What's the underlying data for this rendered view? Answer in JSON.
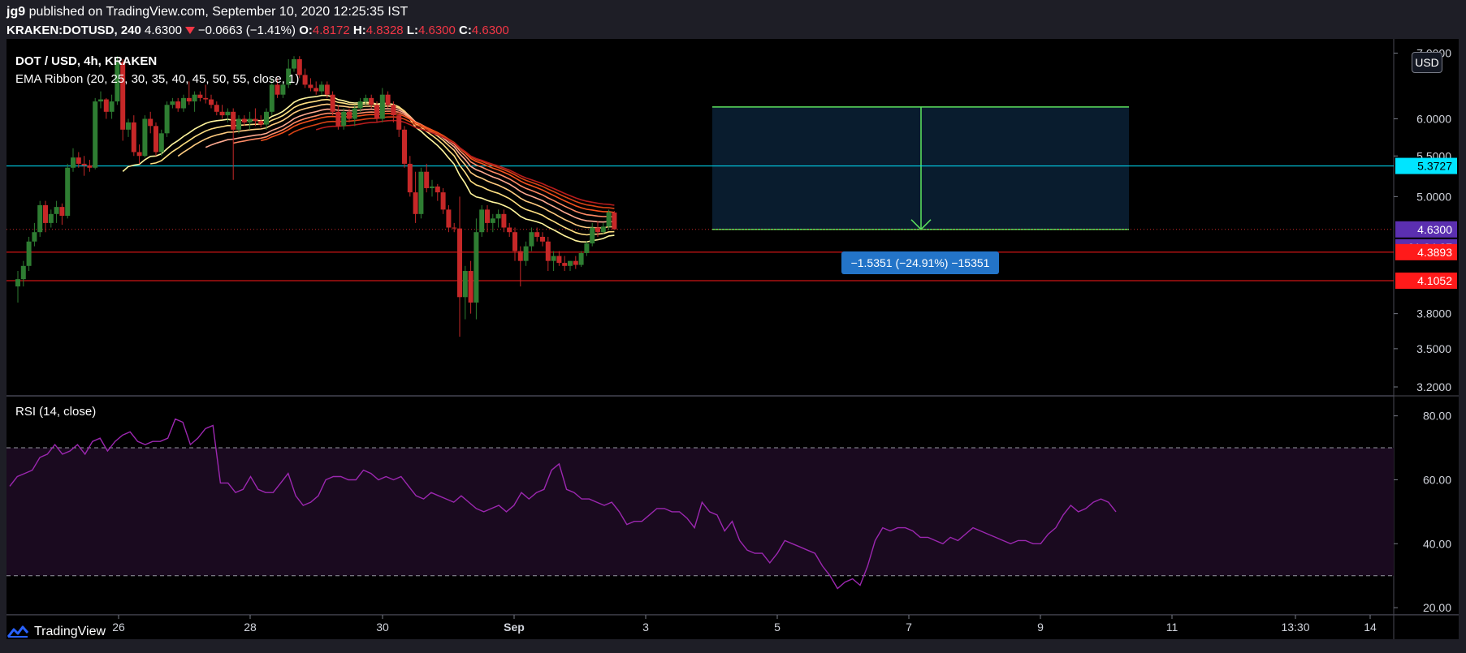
{
  "header": {
    "publisher": "jg9",
    "published_text": "published on TradingView.com, September 10, 2020 12:25:35 IST",
    "symbol": "KRAKEN:DOTUSD, 240",
    "last": "4.6300",
    "change": "−0.0663 (−1.41%)",
    "o_label": "O:",
    "o_val": "4.8172",
    "h_label": "H:",
    "h_val": "4.8328",
    "l_label": "L:",
    "l_val": "4.6300",
    "c_label": "C:",
    "c_val": "4.6300"
  },
  "legend": {
    "title": "DOT / USD, 4h, KRAKEN",
    "indicator": "EMA Ribbon (20, 25, 30, 35, 40, 45, 50, 55, close, 1)",
    "rsi": "RSI (14, close)"
  },
  "currency_button": "USD",
  "footer": {
    "brand": "TradingView"
  },
  "colors": {
    "background": "#000000",
    "up": "#2e7d32",
    "down": "#c62828",
    "rsi_line": "#9c27b0",
    "rsi_band": "#1a0a1f",
    "cyan": "#00e5ff",
    "red_level": "#ff1a1a",
    "green_box": "#5ee35e",
    "box_fill": "#0a1f33",
    "label_blue": "#2374c8",
    "label_purple": "#5b2fb0"
  },
  "chart_data": [
    {
      "type": "candlestick",
      "title": "DOT / USD, 4h, KRAKEN",
      "x_tick_labels": [
        "26",
        "28",
        "30",
        "Sep",
        "3",
        "5",
        "7",
        "9",
        "11",
        "13:30",
        "14"
      ],
      "y_tick_labels": [
        "7.0000",
        "6.0000",
        "5.5000",
        "5.0000",
        "3.8000",
        "3.5000",
        "3.2000"
      ],
      "ylim": [
        3.2,
        7.1
      ],
      "candles": [
        {
          "o": 4.05,
          "h": 4.2,
          "l": 3.9,
          "c": 4.12
        },
        {
          "o": 4.12,
          "h": 4.3,
          "l": 4.05,
          "c": 4.25
        },
        {
          "o": 4.25,
          "h": 4.55,
          "l": 4.2,
          "c": 4.5
        },
        {
          "o": 4.5,
          "h": 4.7,
          "l": 4.45,
          "c": 4.6
        },
        {
          "o": 4.6,
          "h": 4.95,
          "l": 4.55,
          "c": 4.9
        },
        {
          "o": 4.9,
          "h": 4.95,
          "l": 4.6,
          "c": 4.7
        },
        {
          "o": 4.7,
          "h": 4.85,
          "l": 4.65,
          "c": 4.8
        },
        {
          "o": 4.8,
          "h": 4.95,
          "l": 4.7,
          "c": 4.88
        },
        {
          "o": 4.88,
          "h": 4.92,
          "l": 4.68,
          "c": 4.78
        },
        {
          "o": 4.78,
          "h": 5.4,
          "l": 4.75,
          "c": 5.35
        },
        {
          "o": 5.35,
          "h": 5.6,
          "l": 5.3,
          "c": 5.48
        },
        {
          "o": 5.48,
          "h": 5.55,
          "l": 5.35,
          "c": 5.4
        },
        {
          "o": 5.4,
          "h": 5.5,
          "l": 5.25,
          "c": 5.38
        },
        {
          "o": 5.38,
          "h": 5.45,
          "l": 5.3,
          "c": 5.35
        },
        {
          "o": 5.35,
          "h": 6.3,
          "l": 5.33,
          "c": 6.25
        },
        {
          "o": 6.25,
          "h": 6.4,
          "l": 6.15,
          "c": 6.28
        },
        {
          "o": 6.28,
          "h": 6.3,
          "l": 6.0,
          "c": 6.1
        },
        {
          "o": 6.1,
          "h": 6.35,
          "l": 6.0,
          "c": 6.25
        },
        {
          "o": 6.25,
          "h": 6.95,
          "l": 6.2,
          "c": 6.85
        },
        {
          "o": 6.85,
          "h": 6.9,
          "l": 5.7,
          "c": 5.85
        },
        {
          "o": 5.85,
          "h": 6.0,
          "l": 5.75,
          "c": 5.95
        },
        {
          "o": 5.95,
          "h": 6.05,
          "l": 5.5,
          "c": 5.55
        },
        {
          "o": 5.55,
          "h": 5.65,
          "l": 5.4,
          "c": 5.5
        },
        {
          "o": 5.5,
          "h": 6.05,
          "l": 5.48,
          "c": 6.0
        },
        {
          "o": 6.0,
          "h": 6.1,
          "l": 5.8,
          "c": 5.9
        },
        {
          "o": 5.9,
          "h": 5.95,
          "l": 5.5,
          "c": 5.55
        },
        {
          "o": 5.55,
          "h": 5.85,
          "l": 5.5,
          "c": 5.8
        },
        {
          "o": 5.8,
          "h": 6.25,
          "l": 5.75,
          "c": 6.2
        },
        {
          "o": 6.2,
          "h": 6.3,
          "l": 6.15,
          "c": 6.25
        },
        {
          "o": 6.25,
          "h": 6.3,
          "l": 6.1,
          "c": 6.15
        },
        {
          "o": 6.15,
          "h": 6.35,
          "l": 6.1,
          "c": 6.3
        },
        {
          "o": 6.3,
          "h": 6.55,
          "l": 6.2,
          "c": 6.25
        },
        {
          "o": 6.25,
          "h": 6.4,
          "l": 6.1,
          "c": 6.35
        },
        {
          "o": 6.35,
          "h": 6.4,
          "l": 6.25,
          "c": 6.3
        },
        {
          "o": 6.3,
          "h": 6.5,
          "l": 6.22,
          "c": 6.28
        },
        {
          "o": 6.28,
          "h": 6.35,
          "l": 6.15,
          "c": 6.2
        },
        {
          "o": 6.2,
          "h": 6.25,
          "l": 6.05,
          "c": 6.1
        },
        {
          "o": 6.1,
          "h": 6.2,
          "l": 6.0,
          "c": 6.05
        },
        {
          "o": 6.05,
          "h": 6.15,
          "l": 5.95,
          "c": 6.1
        },
        {
          "o": 6.1,
          "h": 6.15,
          "l": 5.2,
          "c": 5.85
        },
        {
          "o": 5.85,
          "h": 6.05,
          "l": 5.8,
          "c": 6.0
        },
        {
          "o": 6.0,
          "h": 6.05,
          "l": 5.9,
          "c": 5.95
        },
        {
          "o": 5.95,
          "h": 6.1,
          "l": 5.85,
          "c": 6.0
        },
        {
          "o": 6.0,
          "h": 6.15,
          "l": 5.9,
          "c": 5.97
        },
        {
          "o": 5.97,
          "h": 6.05,
          "l": 5.88,
          "c": 5.92
        },
        {
          "o": 5.92,
          "h": 6.15,
          "l": 5.85,
          "c": 6.1
        },
        {
          "o": 6.1,
          "h": 6.6,
          "l": 6.05,
          "c": 6.5
        },
        {
          "o": 6.5,
          "h": 6.6,
          "l": 6.3,
          "c": 6.35
        },
        {
          "o": 6.35,
          "h": 6.55,
          "l": 6.3,
          "c": 6.5
        },
        {
          "o": 6.5,
          "h": 6.9,
          "l": 6.45,
          "c": 6.75
        },
        {
          "o": 6.75,
          "h": 6.95,
          "l": 6.7,
          "c": 6.9
        },
        {
          "o": 6.9,
          "h": 6.95,
          "l": 6.6,
          "c": 6.65
        },
        {
          "o": 6.65,
          "h": 6.75,
          "l": 6.45,
          "c": 6.5
        },
        {
          "o": 6.5,
          "h": 6.6,
          "l": 6.4,
          "c": 6.45
        },
        {
          "o": 6.45,
          "h": 6.55,
          "l": 6.35,
          "c": 6.4
        },
        {
          "o": 6.4,
          "h": 6.55,
          "l": 6.35,
          "c": 6.5
        },
        {
          "o": 6.5,
          "h": 6.55,
          "l": 6.3,
          "c": 6.35
        },
        {
          "o": 6.35,
          "h": 6.4,
          "l": 6.05,
          "c": 6.1
        },
        {
          "o": 6.1,
          "h": 6.2,
          "l": 5.85,
          "c": 5.9
        },
        {
          "o": 5.9,
          "h": 6.15,
          "l": 5.85,
          "c": 6.1
        },
        {
          "o": 6.1,
          "h": 6.15,
          "l": 5.95,
          "c": 6.0
        },
        {
          "o": 6.0,
          "h": 6.2,
          "l": 5.9,
          "c": 6.15
        },
        {
          "o": 6.15,
          "h": 6.3,
          "l": 6.1,
          "c": 6.25
        },
        {
          "o": 6.25,
          "h": 6.35,
          "l": 6.2,
          "c": 6.3
        },
        {
          "o": 6.3,
          "h": 6.35,
          "l": 6.15,
          "c": 6.2
        },
        {
          "o": 6.2,
          "h": 6.25,
          "l": 5.95,
          "c": 6.0
        },
        {
          "o": 6.0,
          "h": 6.45,
          "l": 5.95,
          "c": 6.35
        },
        {
          "o": 6.35,
          "h": 6.4,
          "l": 6.15,
          "c": 6.2
        },
        {
          "o": 6.2,
          "h": 6.25,
          "l": 5.95,
          "c": 6.05
        },
        {
          "o": 6.05,
          "h": 6.1,
          "l": 5.75,
          "c": 5.85
        },
        {
          "o": 5.85,
          "h": 5.9,
          "l": 5.35,
          "c": 5.4
        },
        {
          "o": 5.4,
          "h": 5.5,
          "l": 5.0,
          "c": 5.05
        },
        {
          "o": 5.05,
          "h": 5.3,
          "l": 4.7,
          "c": 4.8
        },
        {
          "o": 4.8,
          "h": 5.35,
          "l": 4.75,
          "c": 5.3
        },
        {
          "o": 5.3,
          "h": 5.4,
          "l": 5.05,
          "c": 5.1
        },
        {
          "o": 5.1,
          "h": 5.2,
          "l": 5.0,
          "c": 5.12
        },
        {
          "o": 5.12,
          "h": 5.15,
          "l": 4.95,
          "c": 5.05
        },
        {
          "o": 5.05,
          "h": 5.1,
          "l": 4.8,
          "c": 4.85
        },
        {
          "o": 4.85,
          "h": 4.9,
          "l": 4.6,
          "c": 4.65
        },
        {
          "o": 4.65,
          "h": 4.7,
          "l": 4.6,
          "c": 4.64
        },
        {
          "o": 4.64,
          "h": 5.0,
          "l": 3.6,
          "c": 3.95
        },
        {
          "o": 3.95,
          "h": 4.25,
          "l": 3.75,
          "c": 4.2
        },
        {
          "o": 4.2,
          "h": 4.3,
          "l": 3.8,
          "c": 3.9
        },
        {
          "o": 3.9,
          "h": 4.75,
          "l": 3.75,
          "c": 4.6
        },
        {
          "o": 4.6,
          "h": 4.9,
          "l": 4.55,
          "c": 4.85
        },
        {
          "o": 4.85,
          "h": 4.9,
          "l": 4.6,
          "c": 4.7
        },
        {
          "o": 4.7,
          "h": 4.8,
          "l": 4.6,
          "c": 4.75
        },
        {
          "o": 4.75,
          "h": 4.85,
          "l": 4.65,
          "c": 4.8
        },
        {
          "o": 4.8,
          "h": 4.85,
          "l": 4.6,
          "c": 4.65
        },
        {
          "o": 4.65,
          "h": 4.7,
          "l": 4.55,
          "c": 4.6
        },
        {
          "o": 4.6,
          "h": 4.65,
          "l": 4.3,
          "c": 4.4
        },
        {
          "o": 4.4,
          "h": 4.45,
          "l": 4.05,
          "c": 4.3
        },
        {
          "o": 4.3,
          "h": 4.5,
          "l": 4.25,
          "c": 4.45
        },
        {
          "o": 4.45,
          "h": 4.65,
          "l": 4.4,
          "c": 4.6
        },
        {
          "o": 4.6,
          "h": 4.65,
          "l": 4.5,
          "c": 4.55
        },
        {
          "o": 4.55,
          "h": 4.6,
          "l": 4.45,
          "c": 4.5
        },
        {
          "o": 4.5,
          "h": 4.55,
          "l": 4.2,
          "c": 4.3
        },
        {
          "o": 4.3,
          "h": 4.4,
          "l": 4.2,
          "c": 4.35
        },
        {
          "o": 4.35,
          "h": 4.4,
          "l": 4.25,
          "c": 4.28
        },
        {
          "o": 4.28,
          "h": 4.35,
          "l": 4.2,
          "c": 4.25
        },
        {
          "o": 4.25,
          "h": 4.3,
          "l": 4.2,
          "c": 4.3
        },
        {
          "o": 4.3,
          "h": 4.35,
          "l": 4.22,
          "c": 4.26
        },
        {
          "o": 4.26,
          "h": 4.4,
          "l": 4.24,
          "c": 4.38
        },
        {
          "o": 4.38,
          "h": 4.5,
          "l": 4.35,
          "c": 4.48
        },
        {
          "o": 4.48,
          "h": 4.7,
          "l": 4.45,
          "c": 4.65
        },
        {
          "o": 4.65,
          "h": 4.72,
          "l": 4.55,
          "c": 4.6
        },
        {
          "o": 4.6,
          "h": 4.7,
          "l": 4.58,
          "c": 4.66
        },
        {
          "o": 4.66,
          "h": 4.85,
          "l": 4.62,
          "c": 4.82
        },
        {
          "o": 4.8172,
          "h": 4.8328,
          "l": 4.63,
          "c": 4.63
        }
      ],
      "ema_ribbon": {
        "periods": [
          20,
          25,
          30,
          35,
          40,
          45,
          50,
          55
        ],
        "colors": [
          "#fff59d",
          "#ffe082",
          "#ffcc80",
          "#ffab91",
          "#ff8a65",
          "#f4511e",
          "#d84315",
          "#b71c1c"
        ]
      },
      "horizontal_levels": [
        {
          "value": 5.3727,
          "label": "5.3727",
          "color": "#00e5ff"
        },
        {
          "value": 4.3893,
          "label": "4.3893",
          "color": "#ff1a1a"
        },
        {
          "value": 4.1052,
          "label": "4.1052",
          "color": "#ff1a1a"
        }
      ],
      "price_labels": [
        {
          "value": 4.63,
          "label": "4.6300"
        },
        {
          "label": "01:04:27"
        }
      ],
      "measure": {
        "label": "−1.5351 (−24.91%) −15351",
        "top": 6.17,
        "bottom": 4.63
      }
    },
    {
      "type": "line",
      "title": "RSI (14, close)",
      "y_tick_labels": [
        "80.00",
        "60.00",
        "40.00",
        "20.00"
      ],
      "ylim": [
        18,
        86
      ],
      "band": [
        30,
        70
      ],
      "values": [
        58,
        61,
        62,
        63,
        67,
        68,
        71,
        68,
        69,
        71,
        68,
        72,
        73,
        69,
        72,
        74,
        75,
        72,
        71,
        72,
        72,
        73,
        79,
        78,
        71,
        73,
        76,
        77,
        59,
        59,
        56,
        57,
        61,
        57,
        56,
        56,
        59,
        62,
        55,
        52,
        53,
        55,
        60,
        61,
        61,
        60,
        60,
        63,
        62,
        60,
        61,
        60,
        61,
        58,
        55,
        54,
        56,
        55,
        54,
        53,
        55,
        53,
        51,
        50,
        51,
        52,
        50,
        52,
        56,
        54,
        56,
        57,
        63,
        65,
        57,
        56,
        54,
        54,
        53,
        52,
        53,
        50,
        46,
        47,
        47,
        49,
        51,
        51,
        50,
        50,
        48,
        45,
        53,
        50,
        49,
        44,
        47,
        41,
        38,
        37,
        37,
        34,
        37,
        41,
        40,
        39,
        38,
        37,
        33,
        30,
        26,
        28,
        29,
        27,
        33,
        41,
        45,
        44,
        45,
        45,
        44,
        42,
        42,
        41,
        40,
        42,
        41,
        43,
        45,
        44,
        43,
        42,
        41,
        40,
        41,
        41,
        40,
        40,
        43,
        45,
        49,
        52,
        50,
        51,
        53,
        54,
        53,
        50
      ]
    }
  ]
}
